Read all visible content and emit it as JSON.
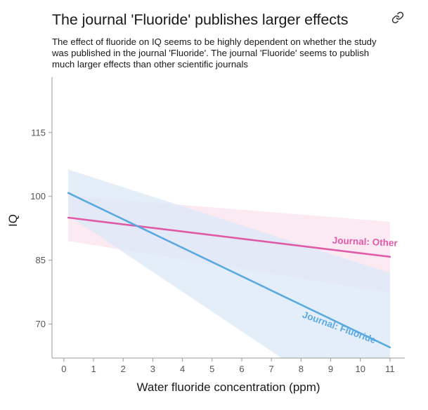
{
  "header": {
    "title": "The journal 'Fluoride' publishes larger effects",
    "subtitle": "The effect of fluoride on IQ seems to be highly dependent on whether the study was published in the journal 'Fluoride'. The journal 'Fluoride' seems to publish much larger effects than other scientific journals",
    "link_icon": "link-icon"
  },
  "chart_data": {
    "type": "line",
    "title": "The journal 'Fluoride' publishes larger effects",
    "xlabel": "Water fluoride concentration (ppm)",
    "ylabel": "IQ",
    "xlim": [
      -0.4,
      11.5
    ],
    "ylim": [
      62,
      128
    ],
    "x_ticks": [
      0,
      1,
      2,
      3,
      4,
      5,
      6,
      7,
      8,
      9,
      10,
      11
    ],
    "y_ticks": [
      70,
      85,
      100,
      115
    ],
    "grid": false,
    "series": [
      {
        "name": "Journal: Other",
        "color": "#e05aa8",
        "band_color": "#fbe3ee",
        "x": [
          0.15,
          11
        ],
        "y": [
          95,
          85.8
        ],
        "ci_lower": [
          89.5,
          77.3
        ],
        "ci_upper": [
          100.2,
          94.0
        ],
        "label_pos": {
          "x": 10.15,
          "y": 88.6,
          "angle": 2.5
        }
      },
      {
        "name": "Journal: Fluoride",
        "color": "#5aa9e0",
        "band_color": "#dbe8f7",
        "x": [
          0.15,
          11
        ],
        "y": [
          100.8,
          64.5
        ],
        "ci_lower": [
          95.5,
          45
        ],
        "ci_upper": [
          106.3,
          82
        ],
        "label_pos": {
          "x": 9.25,
          "y": 68.5,
          "angle": 20
        }
      }
    ]
  }
}
